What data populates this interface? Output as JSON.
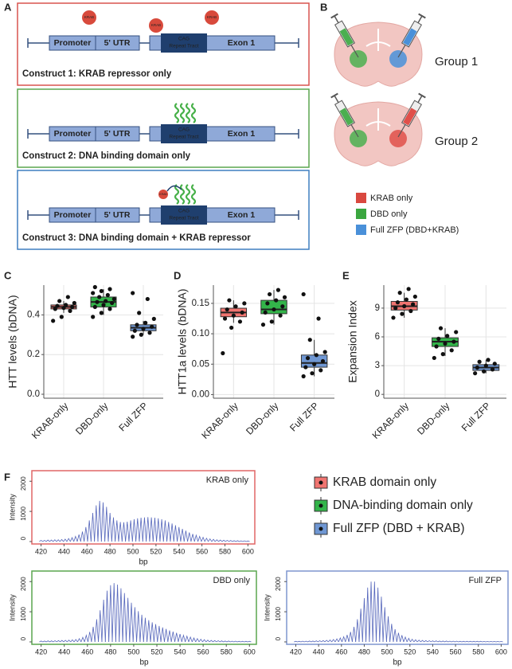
{
  "panel_labels": [
    "A",
    "B",
    "C",
    "D",
    "E",
    "F"
  ],
  "constructs": [
    {
      "promoter": "Promoter",
      "utr": "5' UTR",
      "cag": "CAG",
      "repeat": "Repeat Tract",
      "exon": "Exon 1",
      "caption": "Construct 1: KRAB repressor only",
      "border": "#d9534f",
      "krab": [
        "KRAB",
        "KRAB",
        "KRAB"
      ]
    },
    {
      "promoter": "Promoter",
      "utr": "5' UTR",
      "cag": "CAG",
      "repeat": "Repeat Tract",
      "exon": "Exon 1",
      "caption": "Construct 2: DNA binding domain only",
      "border": "#5aa64f",
      "dbd": true
    },
    {
      "promoter": "Promoter",
      "utr": "5' UTR",
      "cag": "CAG",
      "repeat": "Repeat Tract",
      "exon": "Exon 1",
      "caption": "Construct 3: DNA binding domain + KRAB repressor",
      "border": "#3f7fc0",
      "dbd": true,
      "krab": [
        "KRAB"
      ]
    }
  ],
  "groups": [
    {
      "name": "Group 1",
      "left": "#4caf50",
      "right": "#4a90d9"
    },
    {
      "name": "Group 2",
      "left": "#4caf50",
      "right": "#e0504a"
    }
  ],
  "b_legend": [
    {
      "name": "KRAB only",
      "color": "#d9483f"
    },
    {
      "name": "DBD only",
      "color": "#3aa63f"
    },
    {
      "name": "Full ZFP (DBD+KRAB)",
      "color": "#4a90d9"
    }
  ],
  "f_legend": [
    {
      "name": "KRAB domain only",
      "color": "#f07470"
    },
    {
      "name": "DNA-binding domain only",
      "color": "#33b44a"
    },
    {
      "name": "Full ZFP (DBD + KRAB)",
      "color": "#6f97d3"
    }
  ],
  "chart_data": [
    {
      "type": "box",
      "ylabel": "HTT levels (bDNA)",
      "categories": [
        "KRAB-only",
        "DBD-only",
        "Full ZFP"
      ],
      "ylim": [
        -0.02,
        0.55
      ],
      "yticks": [
        {
          "value": 0,
          "label": "0.0"
        },
        {
          "value": 0.2,
          "label": "0.2"
        },
        {
          "value": 0.4,
          "label": "0.4"
        }
      ],
      "grid": true,
      "boxes": [
        {
          "color": "#f07470",
          "q1": 0.43,
          "median": 0.44,
          "q3": 0.45,
          "whisker_low": 0.41,
          "whisker_high": 0.47,
          "points": [
            0.37,
            0.39,
            0.42,
            0.43,
            0.435,
            0.44,
            0.445,
            0.45,
            0.46,
            0.47,
            0.49
          ]
        },
        {
          "color": "#33b44a",
          "q1": 0.44,
          "median": 0.465,
          "q3": 0.49,
          "whisker_low": 0.4,
          "whisker_high": 0.53,
          "points": [
            0.39,
            0.41,
            0.43,
            0.44,
            0.45,
            0.46,
            0.465,
            0.47,
            0.48,
            0.49,
            0.5,
            0.51,
            0.52,
            0.53,
            0.54
          ]
        },
        {
          "color": "#6f97d3",
          "q1": 0.32,
          "median": 0.335,
          "q3": 0.35,
          "whisker_low": 0.3,
          "whisker_high": 0.37,
          "points": [
            0.29,
            0.3,
            0.31,
            0.32,
            0.33,
            0.34,
            0.35,
            0.36,
            0.38,
            0.41,
            0.48,
            0.51
          ]
        }
      ]
    },
    {
      "type": "box",
      "ylabel": "HTT1a levels (bDNA)",
      "categories": [
        "KRAB-only",
        "DBD-only",
        "Full ZFP"
      ],
      "ylim": [
        -0.006,
        0.18
      ],
      "yticks": [
        {
          "value": 0,
          "label": "0.00"
        },
        {
          "value": 0.05,
          "label": "0.05"
        },
        {
          "value": 0.1,
          "label": "0.10"
        },
        {
          "value": 0.15,
          "label": "0.15"
        }
      ],
      "grid": true,
      "boxes": [
        {
          "color": "#f07470",
          "q1": 0.128,
          "median": 0.135,
          "q3": 0.142,
          "whisker_low": 0.118,
          "whisker_high": 0.155,
          "points": [
            0.068,
            0.11,
            0.12,
            0.125,
            0.13,
            0.135,
            0.14,
            0.145,
            0.15,
            0.155
          ]
        },
        {
          "color": "#33b44a",
          "q1": 0.133,
          "median": 0.14,
          "q3": 0.155,
          "whisker_low": 0.115,
          "whisker_high": 0.172,
          "points": [
            0.115,
            0.12,
            0.13,
            0.135,
            0.14,
            0.145,
            0.15,
            0.155,
            0.16,
            0.165,
            0.172
          ]
        },
        {
          "color": "#6f97d3",
          "q1": 0.045,
          "median": 0.052,
          "q3": 0.065,
          "whisker_low": 0.03,
          "whisker_high": 0.09,
          "points": [
            0.03,
            0.035,
            0.04,
            0.045,
            0.05,
            0.055,
            0.06,
            0.065,
            0.07,
            0.09,
            0.125,
            0.165
          ]
        }
      ]
    },
    {
      "type": "box",
      "ylabel": "Expansion Index",
      "categories": [
        "KRAB-only",
        "DBD-only",
        "Full ZFP"
      ],
      "ylim": [
        -0.4,
        11.4
      ],
      "yticks": [
        0,
        3,
        6,
        9
      ],
      "grid": true,
      "boxes": [
        {
          "color": "#f07470",
          "q1": 8.8,
          "median": 9.2,
          "q3": 9.7,
          "whisker_low": 8.0,
          "whisker_high": 10.6,
          "points": [
            8.0,
            8.4,
            8.7,
            9.0,
            9.2,
            9.4,
            9.6,
            9.9,
            10.2,
            10.6,
            11.0
          ]
        },
        {
          "color": "#33b44a",
          "q1": 5.0,
          "median": 5.5,
          "q3": 5.9,
          "whisker_low": 4.0,
          "whisker_high": 6.9,
          "points": [
            3.8,
            4.2,
            4.6,
            5.0,
            5.3,
            5.5,
            5.8,
            6.1,
            6.5,
            6.9
          ]
        },
        {
          "color": "#6f97d3",
          "q1": 2.5,
          "median": 2.8,
          "q3": 3.1,
          "whisker_low": 2.2,
          "whisker_high": 3.6,
          "points": [
            2.2,
            2.4,
            2.6,
            2.8,
            3.0,
            3.2,
            3.4,
            3.6
          ]
        }
      ]
    },
    {
      "type": "spectrum",
      "title": "KRAB only",
      "xlabel": "bp",
      "ylabel": "Intensity",
      "color": "#5566bb",
      "border": "#e06666",
      "xlim": [
        412,
        606
      ],
      "xticks": [
        420,
        440,
        460,
        480,
        500,
        520,
        540,
        560,
        580,
        600
      ],
      "ylim": [
        -80,
        2350
      ],
      "yticks": [
        0,
        1000,
        2000
      ],
      "x": [
        420,
        423,
        426,
        429,
        432,
        435,
        438,
        441,
        444,
        447,
        450,
        453,
        456,
        459,
        462,
        465,
        468,
        471,
        474,
        477,
        480,
        483,
        486,
        489,
        492,
        495,
        498,
        501,
        504,
        507,
        510,
        513,
        516,
        519,
        522,
        525,
        528,
        531,
        534,
        537,
        540,
        543,
        546,
        549,
        552,
        555,
        558,
        561,
        564,
        567,
        570,
        573,
        576,
        579,
        582,
        585,
        588,
        591,
        594,
        597,
        600
      ],
      "values": [
        40,
        40,
        50,
        50,
        60,
        60,
        70,
        80,
        100,
        130,
        170,
        230,
        330,
        480,
        700,
        950,
        1200,
        1350,
        1300,
        1150,
        950,
        800,
        700,
        650,
        640,
        660,
        700,
        740,
        770,
        790,
        800,
        810,
        800,
        790,
        770,
        740,
        700,
        650,
        600,
        540,
        480,
        420,
        360,
        300,
        250,
        210,
        170,
        140,
        110,
        90,
        75,
        60,
        50,
        45,
        40,
        35,
        30,
        30,
        25,
        25,
        20
      ]
    },
    {
      "type": "spectrum",
      "title": "DBD only",
      "xlabel": "bp",
      "ylabel": "Intensity",
      "color": "#5566bb",
      "border": "#5aa64f",
      "xlim": [
        412,
        606
      ],
      "xticks": [
        420,
        440,
        460,
        480,
        500,
        520,
        540,
        560,
        580,
        600
      ],
      "ylim": [
        -80,
        2350
      ],
      "yticks": [
        0,
        1000,
        2000
      ],
      "x": [
        420,
        423,
        426,
        429,
        432,
        435,
        438,
        441,
        444,
        447,
        450,
        453,
        456,
        459,
        462,
        465,
        468,
        471,
        474,
        477,
        480,
        483,
        486,
        489,
        492,
        495,
        498,
        501,
        504,
        507,
        510,
        513,
        516,
        519,
        522,
        525,
        528,
        531,
        534,
        537,
        540,
        543,
        546,
        549,
        552,
        555,
        558,
        561,
        564,
        567,
        570,
        573,
        576,
        579,
        582,
        585,
        588,
        591,
        594,
        597,
        600
      ],
      "values": [
        30,
        30,
        35,
        35,
        40,
        45,
        50,
        55,
        60,
        70,
        80,
        110,
        150,
        220,
        330,
        500,
        750,
        1050,
        1400,
        1700,
        1880,
        1950,
        1900,
        1780,
        1620,
        1460,
        1300,
        1150,
        1020,
        900,
        800,
        720,
        650,
        590,
        530,
        480,
        430,
        380,
        340,
        300,
        260,
        220,
        190,
        160,
        130,
        110,
        90,
        75,
        60,
        50,
        45,
        40,
        35,
        30,
        30,
        25,
        25,
        20,
        20,
        20,
        20
      ]
    },
    {
      "type": "spectrum",
      "title": "Full ZFP",
      "xlabel": "bp",
      "ylabel": "Intensity",
      "color": "#5566bb",
      "border": "#7f95cf",
      "xlim": [
        412,
        606
      ],
      "xticks": [
        420,
        440,
        460,
        480,
        500,
        520,
        540,
        560,
        580,
        600
      ],
      "ylim": [
        -80,
        2350
      ],
      "yticks": [
        0,
        1000,
        2000
      ],
      "x": [
        420,
        423,
        426,
        429,
        432,
        435,
        438,
        441,
        444,
        447,
        450,
        453,
        456,
        459,
        462,
        465,
        468,
        471,
        474,
        477,
        480,
        483,
        486,
        489,
        492,
        495,
        498,
        501,
        504,
        507,
        510,
        513,
        516,
        519,
        522,
        525,
        528,
        531,
        534,
        537,
        540,
        543,
        546,
        549,
        552,
        555,
        558,
        561,
        564,
        567,
        570,
        573,
        576,
        579,
        582,
        585,
        588,
        591,
        594,
        597,
        600
      ],
      "values": [
        20,
        20,
        25,
        25,
        30,
        30,
        35,
        40,
        45,
        55,
        65,
        80,
        100,
        130,
        170,
        230,
        330,
        500,
        750,
        1100,
        1450,
        1800,
        2000,
        2000,
        1800,
        1500,
        1150,
        850,
        600,
        420,
        300,
        220,
        160,
        120,
        90,
        70,
        60,
        50,
        45,
        40,
        35,
        35,
        30,
        30,
        30,
        25,
        25,
        25,
        20,
        20,
        20,
        20,
        20,
        20,
        20,
        15,
        15,
        15,
        15,
        15,
        15
      ]
    }
  ]
}
